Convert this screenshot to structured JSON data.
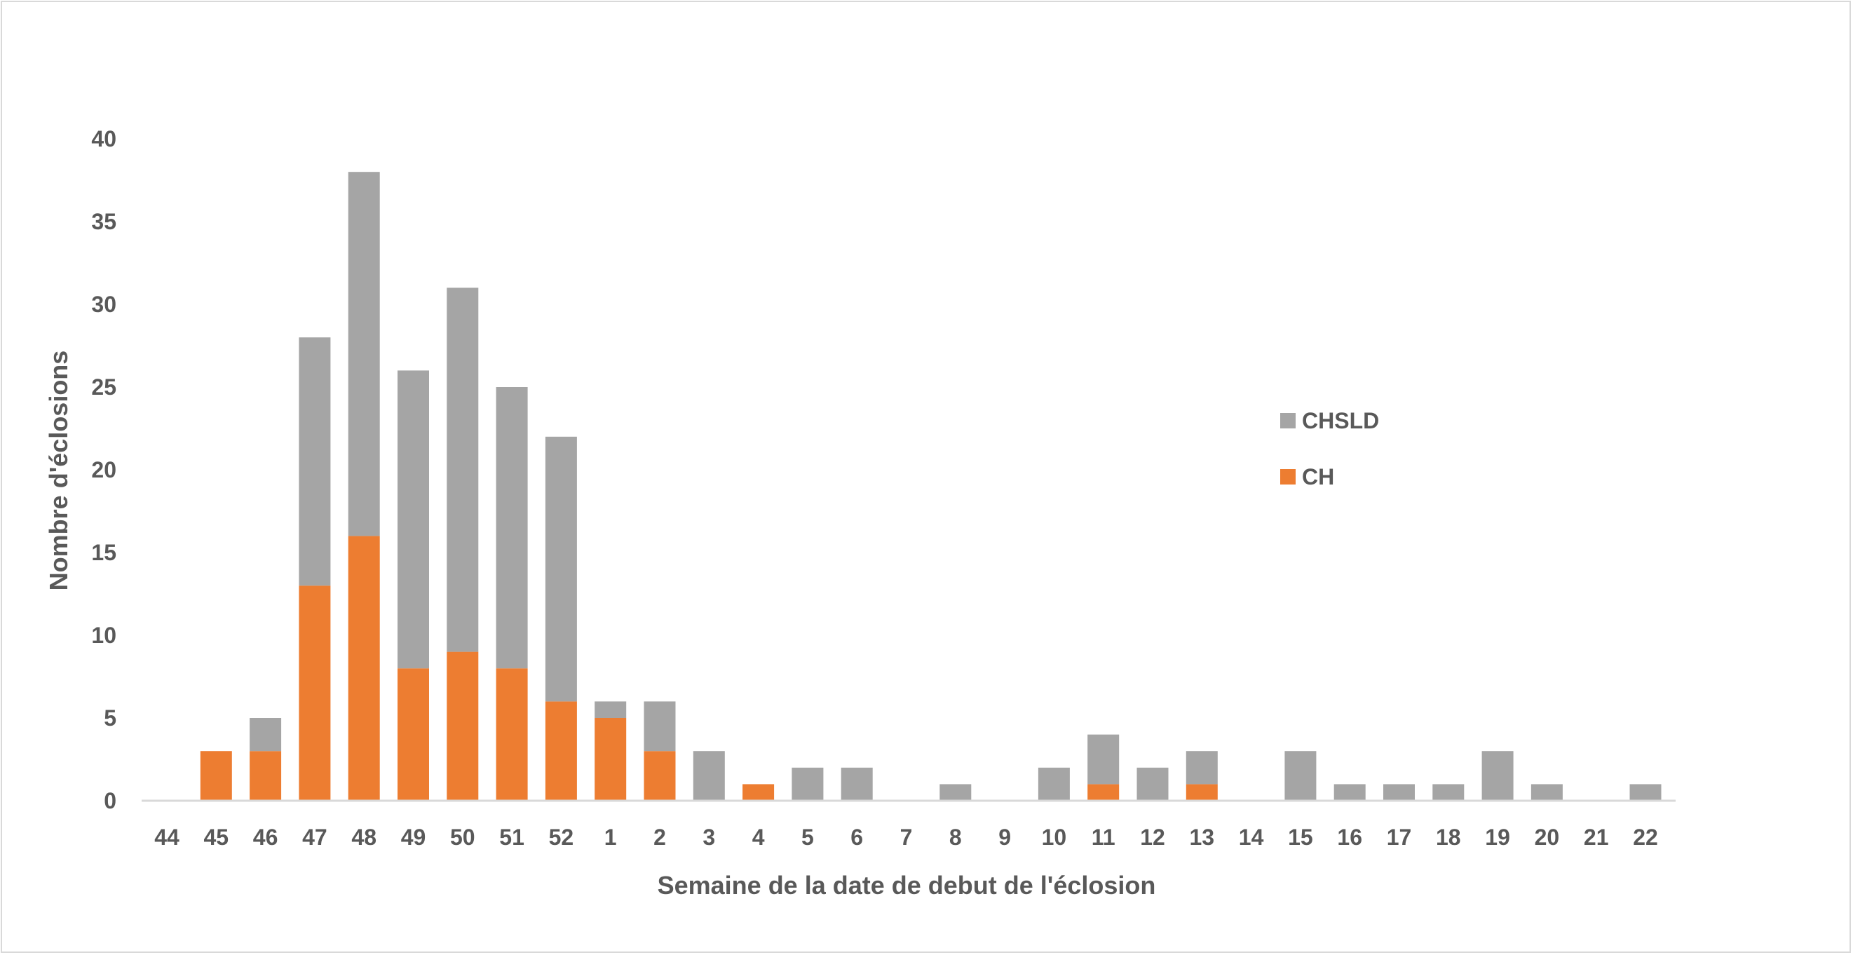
{
  "chart_data": {
    "type": "bar",
    "stacked": true,
    "title": "",
    "xlabel": "Semaine de la date de debut de l'éclosion",
    "ylabel": "Nombre d'éclosions",
    "ylim": [
      0,
      40
    ],
    "yticks": [
      "0",
      "5",
      "10",
      "15",
      "20",
      "25",
      "30",
      "35",
      "40"
    ],
    "grid": false,
    "legend_position": "right",
    "categories": [
      "44",
      "45",
      "46",
      "47",
      "48",
      "49",
      "50",
      "51",
      "52",
      "1",
      "2",
      "3",
      "4",
      "5",
      "6",
      "7",
      "8",
      "9",
      "10",
      "11",
      "12",
      "13",
      "14",
      "15",
      "16",
      "17",
      "18",
      "19",
      "20",
      "21",
      "22"
    ],
    "series": [
      {
        "name": "CH",
        "color": "#ED7D31",
        "values": [
          0,
          3,
          3,
          13,
          16,
          8,
          9,
          8,
          6,
          5,
          3,
          0,
          1,
          0,
          0,
          0,
          0,
          0,
          0,
          1,
          0,
          1,
          0,
          0,
          0,
          0,
          0,
          0,
          0,
          0,
          0
        ]
      },
      {
        "name": "CHSLD",
        "color": "#A5A5A5",
        "values": [
          0,
          0,
          2,
          15,
          22,
          18,
          22,
          17,
          16,
          1,
          3,
          3,
          0,
          2,
          2,
          0,
          1,
          0,
          2,
          3,
          2,
          2,
          0,
          3,
          1,
          1,
          1,
          3,
          1,
          0,
          1
        ]
      }
    ],
    "legend": [
      {
        "name": "CHSLD",
        "color": "#A5A5A5"
      },
      {
        "name": "CH",
        "color": "#ED7D31"
      }
    ]
  }
}
